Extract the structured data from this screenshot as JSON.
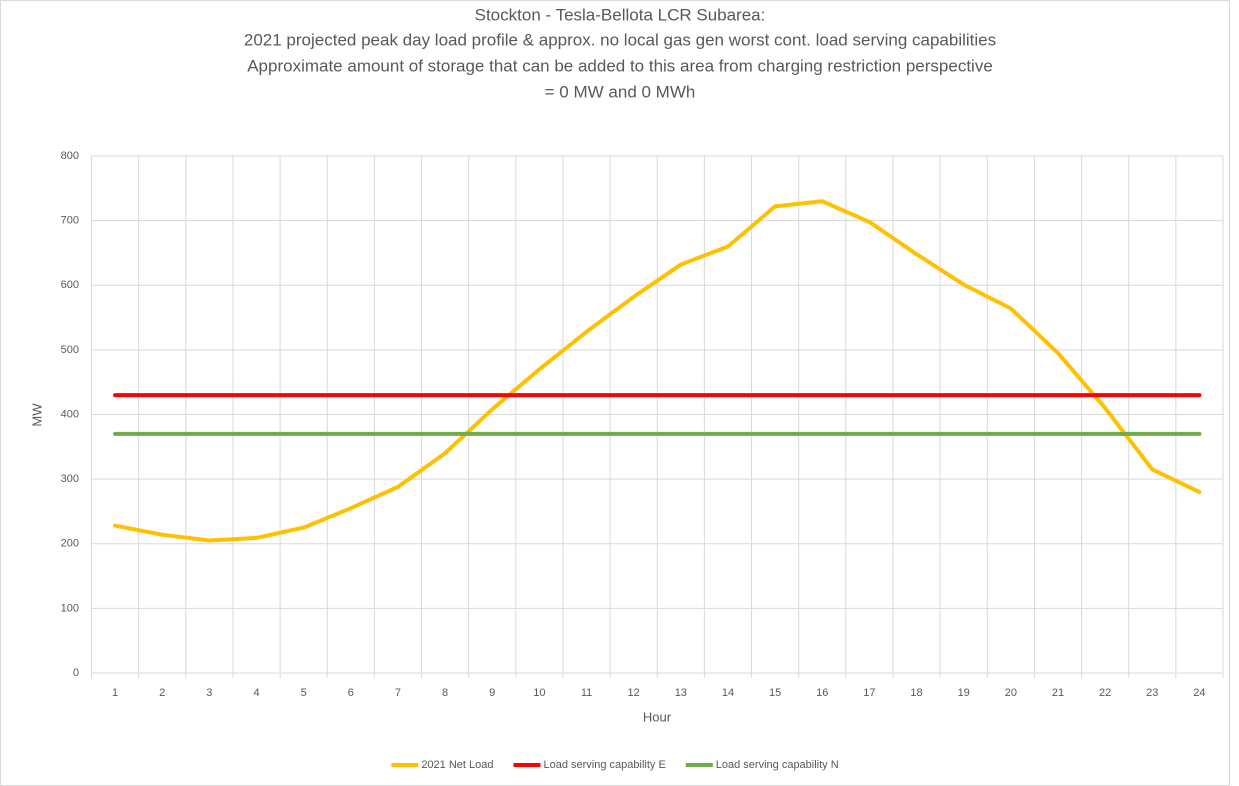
{
  "chart_data": {
    "type": "line",
    "title": [
      "Stockton - Tesla-Bellota LCR Subarea:",
      "2021 projected peak day load profile & approx. no local gas gen worst cont. load serving capabilities",
      "Approximate amount of storage that can be added to this area from charging restriction perspective",
      "= 0 MW and 0 MWh"
    ],
    "x_label": "Hour",
    "y_label": "MW",
    "categories": [
      "1",
      "2",
      "3",
      "4",
      "5",
      "6",
      "7",
      "8",
      "9",
      "10",
      "11",
      "12",
      "13",
      "14",
      "15",
      "16",
      "17",
      "18",
      "19",
      "20",
      "21",
      "22",
      "23",
      "24"
    ],
    "series": [
      {
        "name": "2021 Net Load",
        "color": "#ffc000",
        "values": [
          228,
          214,
          205,
          209,
          225,
          255,
          288,
          340,
          408,
          470,
          528,
          582,
          632,
          660,
          722,
          730,
          698,
          648,
          601,
          564,
          495,
          410,
          315,
          280
        ]
      },
      {
        "name": "Load serving capability E",
        "color": "#ff0000",
        "values": [
          430,
          430,
          430,
          430,
          430,
          430,
          430,
          430,
          430,
          430,
          430,
          430,
          430,
          430,
          430,
          430,
          430,
          430,
          430,
          430,
          430,
          430,
          430,
          430
        ]
      },
      {
        "name": "Load serving capability N",
        "color": "#70ad47",
        "values": [
          370,
          370,
          370,
          370,
          370,
          370,
          370,
          370,
          370,
          370,
          370,
          370,
          370,
          370,
          370,
          370,
          370,
          370,
          370,
          370,
          370,
          370,
          370,
          370
        ]
      }
    ],
    "ylim": [
      0,
      800
    ],
    "yticks": [
      0,
      100,
      200,
      300,
      400,
      500,
      600,
      700,
      800
    ],
    "grid": true,
    "legend": "bottom"
  }
}
